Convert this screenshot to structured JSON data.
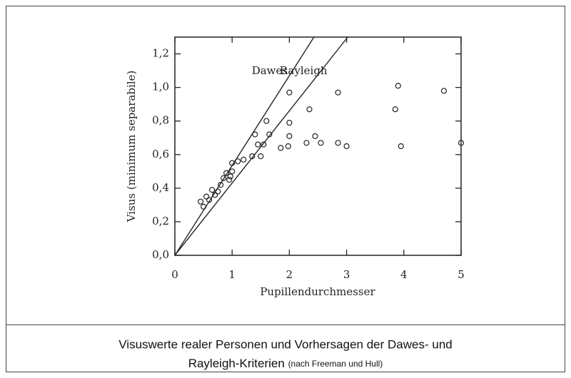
{
  "chart_data": {
    "type": "scatter",
    "xlabel": "Pupillendurchmesser",
    "ylabel": "Visus (minimum separabile)",
    "xlim": [
      0,
      5
    ],
    "ylim": [
      0,
      1.3
    ],
    "xticks": [
      0,
      1,
      2,
      3,
      4,
      5
    ],
    "yticks": [
      {
        "value": 0,
        "label": "0,0"
      },
      {
        "value": 0.2,
        "label": "0,2"
      },
      {
        "value": 0.4,
        "label": "0,4"
      },
      {
        "value": 0.6,
        "label": "0,6"
      },
      {
        "value": 0.8,
        "label": "0,8"
      },
      {
        "value": 1.0,
        "label": "1,0"
      },
      {
        "value": 1.2,
        "label": "1,2"
      }
    ],
    "series": [
      {
        "color": "#222222",
        "x": [
          0.45,
          0.5,
          0.55,
          0.6,
          0.65,
          0.7,
          0.75,
          0.8,
          0.85,
          0.9,
          0.95,
          0.97,
          1.0,
          1.0,
          1.1,
          1.2,
          1.35,
          1.4,
          1.45,
          1.5,
          1.55,
          1.6,
          1.65,
          1.85,
          1.98,
          2.0,
          2.0,
          2.0,
          2.3,
          2.35,
          2.45,
          2.55,
          2.85,
          2.85,
          3.0,
          3.85,
          3.9,
          3.95,
          4.7,
          5.0
        ],
        "values": [
          0.32,
          0.29,
          0.35,
          0.33,
          0.39,
          0.36,
          0.38,
          0.42,
          0.46,
          0.49,
          0.45,
          0.47,
          0.5,
          0.55,
          0.56,
          0.57,
          0.59,
          0.72,
          0.66,
          0.59,
          0.66,
          0.8,
          0.72,
          0.64,
          0.65,
          0.97,
          0.79,
          0.71,
          0.67,
          0.87,
          0.71,
          0.67,
          0.97,
          0.67,
          0.65,
          0.87,
          1.01,
          0.65,
          0.98,
          0.67
        ]
      },
      {
        "name": "Dawes",
        "type": "line",
        "color": "#222222",
        "x": [
          0,
          2.43
        ],
        "values": [
          0,
          1.3
        ]
      },
      {
        "name": "Rayleigh",
        "type": "line",
        "color": "#222222",
        "x": [
          0,
          3.02
        ],
        "values": [
          0,
          1.3
        ]
      }
    ]
  },
  "caption": {
    "line1": "Visuswerte realer Personen und Vorhersagen der Dawes- und",
    "line2": "Rayleigh-Kriterien",
    "source": "(nach Freeman und Hull)"
  }
}
